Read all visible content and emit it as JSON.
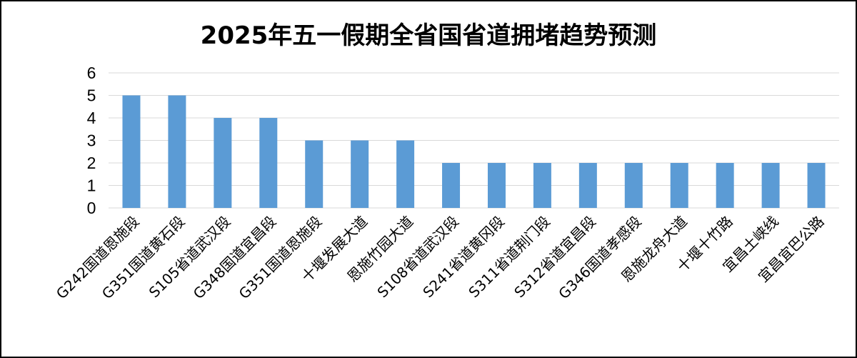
{
  "chart_data": {
    "type": "bar",
    "title": "2025年五一假期全省国省道拥堵趋势预测",
    "categories": [
      "G242国道恩施段",
      "G351国道黄石段",
      "S105省道武汉段",
      "G348国道宜昌段",
      "G351国道恩施段",
      "十堰发展大道",
      "恩施竹园大道",
      "S108省道武汉段",
      "S241省道黄冈段",
      "S311省道荆门段",
      "S312省道宜昌段",
      "G346国道孝感段",
      "恩施龙舟大道",
      "十堰十竹路",
      "宜昌土峡线",
      "宜昌宜巴公路"
    ],
    "values": [
      5,
      5,
      4,
      4,
      3,
      3,
      3,
      2,
      2,
      2,
      2,
      2,
      2,
      2,
      2,
      2
    ],
    "ylim": [
      0,
      6
    ],
    "yticks": [
      "0",
      "1",
      "2",
      "3",
      "4",
      "5",
      "6"
    ],
    "xlabel": "",
    "ylabel": "",
    "grid": true,
    "legend": "none",
    "bar_color": "#5B9BD5",
    "grid_color": "#D9D9D9"
  }
}
